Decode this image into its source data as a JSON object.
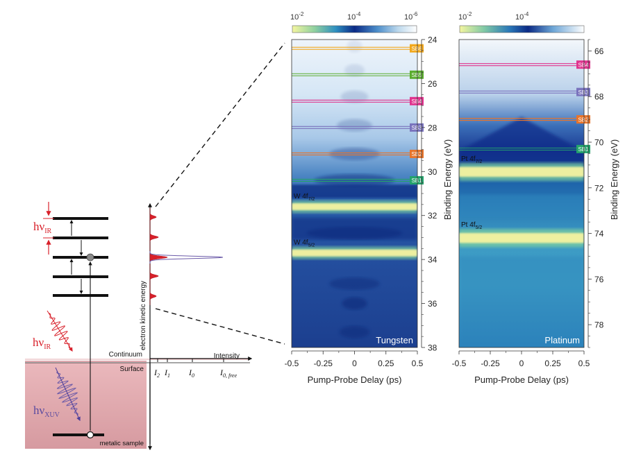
{
  "schematic": {
    "hv_ir_top": "hν",
    "hv_ir_top_sub": "IR",
    "hv_ir_pulse": "hν",
    "hv_ir_pulse_sub": "IR",
    "hv_xuv": "hν",
    "hv_xuv_sub": "XUV",
    "continuum": "Continuum",
    "surface": "Surface",
    "sample": "metalic sample",
    "yaxis": "electron kinetic energy",
    "intensity": "Intensity",
    "ticks": [
      {
        "main": "I",
        "sub": "2"
      },
      {
        "main": "I",
        "sub": "1"
      },
      {
        "main": "I",
        "sub": "0"
      },
      {
        "main": "I",
        "sub": "0, free"
      }
    ],
    "colors": {
      "ir": "#d8202a",
      "xuv": "#6b5aa8",
      "sample": "#e7b0b4"
    }
  },
  "colorbars": [
    {
      "ticks": [
        {
          "base": "10",
          "exp": "-2"
        },
        {
          "base": "10",
          "exp": "-4"
        },
        {
          "base": "10",
          "exp": "-6"
        }
      ]
    },
    {
      "ticks": [
        {
          "base": "10",
          "exp": "-2"
        },
        {
          "base": "10",
          "exp": "-4"
        }
      ]
    }
  ],
  "chart_data": [
    {
      "type": "heatmap",
      "panel_label": "Tungsten",
      "xlabel": "Pump-Probe Delay (ps)",
      "ylabel": "Binding Energy (eV)",
      "xlim": [
        -0.5,
        0.5
      ],
      "ylim": [
        24,
        38
      ],
      "x_ticks": [
        "-0.5",
        "-0.25",
        "0",
        "0.25",
        "0.5"
      ],
      "y_ticks": [
        "24",
        "26",
        "28",
        "30",
        "32",
        "34",
        "36",
        "38"
      ],
      "peaks": [
        {
          "label": "W 4f",
          "sub": "7/2",
          "y": 31.6
        },
        {
          "label": "W 4f",
          "sub": "5/2",
          "y": 33.7
        }
      ],
      "sidebands": [
        {
          "label": "SB6",
          "y": 24.4,
          "color": "#f2a81d"
        },
        {
          "label": "SB5",
          "y": 25.6,
          "color": "#5aac2e"
        },
        {
          "label": "SB4",
          "y": 26.8,
          "color": "#e0348e"
        },
        {
          "label": "SB3",
          "y": 28.0,
          "color": "#7a73bd"
        },
        {
          "label": "SB2",
          "y": 29.2,
          "color": "#e8742a"
        },
        {
          "label": "SB1",
          "y": 30.4,
          "color": "#24a36c"
        }
      ]
    },
    {
      "type": "heatmap",
      "panel_label": "Platinum",
      "xlabel": "Pump-Probe Delay (ps)",
      "ylabel": "Binding Energy (eV)",
      "xlim": [
        -0.5,
        0.5
      ],
      "ylim": [
        65.5,
        79
      ],
      "x_ticks": [
        "-0.5",
        "-0.25",
        "0",
        "0.25",
        "0.5"
      ],
      "y_ticks": [
        "66",
        "68",
        "70",
        "72",
        "74",
        "76",
        "78"
      ],
      "peaks": [
        {
          "label": "Pt 4f",
          "sub": "7/2",
          "y": 71.3
        },
        {
          "label": "Pt 4f",
          "sub": "5/2",
          "y": 74.2
        }
      ],
      "sidebands": [
        {
          "label": "SB4",
          "y": 66.6,
          "color": "#e0348e"
        },
        {
          "label": "SB3",
          "y": 67.8,
          "color": "#7a73bd"
        },
        {
          "label": "SB2",
          "y": 69.0,
          "color": "#e8742a"
        },
        {
          "label": "SB1",
          "y": 70.3,
          "color": "#24a36c"
        }
      ]
    }
  ]
}
